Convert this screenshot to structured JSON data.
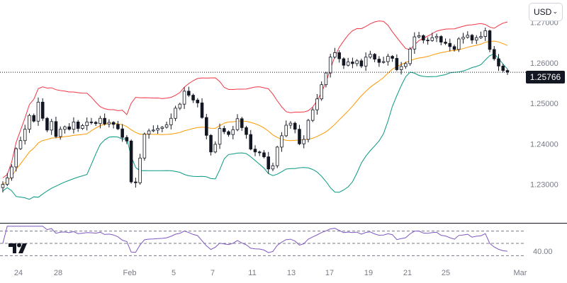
{
  "toolbar": {
    "currency": "USD"
  },
  "price_badge": "1.25766",
  "rsi_label": "40.00",
  "colors": {
    "up": "#ffffff",
    "down": "#131722",
    "candle_border": "#131722",
    "upper_band": "#f23645",
    "basis": "#ff9800",
    "lower_band": "#089981",
    "rsi": "#7e57c2",
    "grid_text": "#787b86",
    "axis_line": "#131722"
  },
  "chart_data": {
    "type": "candlestick",
    "price_axis": {
      "ticks": [
        "1.27000",
        "1.26000",
        "1.25000",
        "1.24000",
        "1.23000"
      ],
      "range": [
        1.2205,
        1.2755
      ]
    },
    "x_axis_labels": [
      "24",
      "28",
      "Feb",
      "5",
      "7",
      "11",
      "13",
      "17",
      "19",
      "21",
      "25",
      "Mar"
    ],
    "last_price": 1.25766,
    "indicators": [
      "Bollinger Bands (upper, basis, lower)",
      "RSI"
    ],
    "rsi_levels": [
      70,
      50,
      30
    ],
    "rsi_range": [
      20,
      80
    ],
    "series_close": [
      1.23,
      1.2316,
      1.2343,
      1.2388,
      1.2408,
      1.2436,
      1.247,
      1.2456,
      1.2503,
      1.2463,
      1.2434,
      1.2455,
      1.2418,
      1.2436,
      1.2442,
      1.2436,
      1.2454,
      1.2438,
      1.2445,
      1.2454,
      1.2453,
      1.245,
      1.2463,
      1.2449,
      1.2453,
      1.2448,
      1.2437,
      1.2416,
      1.2407,
      1.2306,
      1.2304,
      1.2365,
      1.2424,
      1.2432,
      1.2434,
      1.2438,
      1.2441,
      1.2447,
      1.2463,
      1.2488,
      1.2498,
      1.253,
      1.252,
      1.2508,
      1.2501,
      1.2465,
      1.2421,
      1.238,
      1.2399,
      1.2438,
      1.243,
      1.2423,
      1.2435,
      1.2462,
      1.244,
      1.2423,
      1.2387,
      1.238,
      1.2378,
      1.2368,
      1.2338,
      1.2346,
      1.2392,
      1.242,
      1.2446,
      1.2451,
      1.2436,
      1.24,
      1.2411,
      1.2458,
      1.2484,
      1.2511,
      1.2546,
      1.2575,
      1.2614,
      1.2625,
      1.261,
      1.2594,
      1.2602,
      1.2598,
      1.2605,
      1.2592,
      1.2614,
      1.2621,
      1.2609,
      1.2601,
      1.2603,
      1.2616,
      1.2611,
      1.2583,
      1.2591,
      1.2598,
      1.2634,
      1.2664,
      1.2667,
      1.2656,
      1.2655,
      1.2662,
      1.2665,
      1.2651,
      1.2648,
      1.264,
      1.2633,
      1.2659,
      1.2663,
      1.2668,
      1.2656,
      1.2662,
      1.2665,
      1.2679,
      1.2633,
      1.261,
      1.2592,
      1.2581,
      1.2577
    ]
  }
}
